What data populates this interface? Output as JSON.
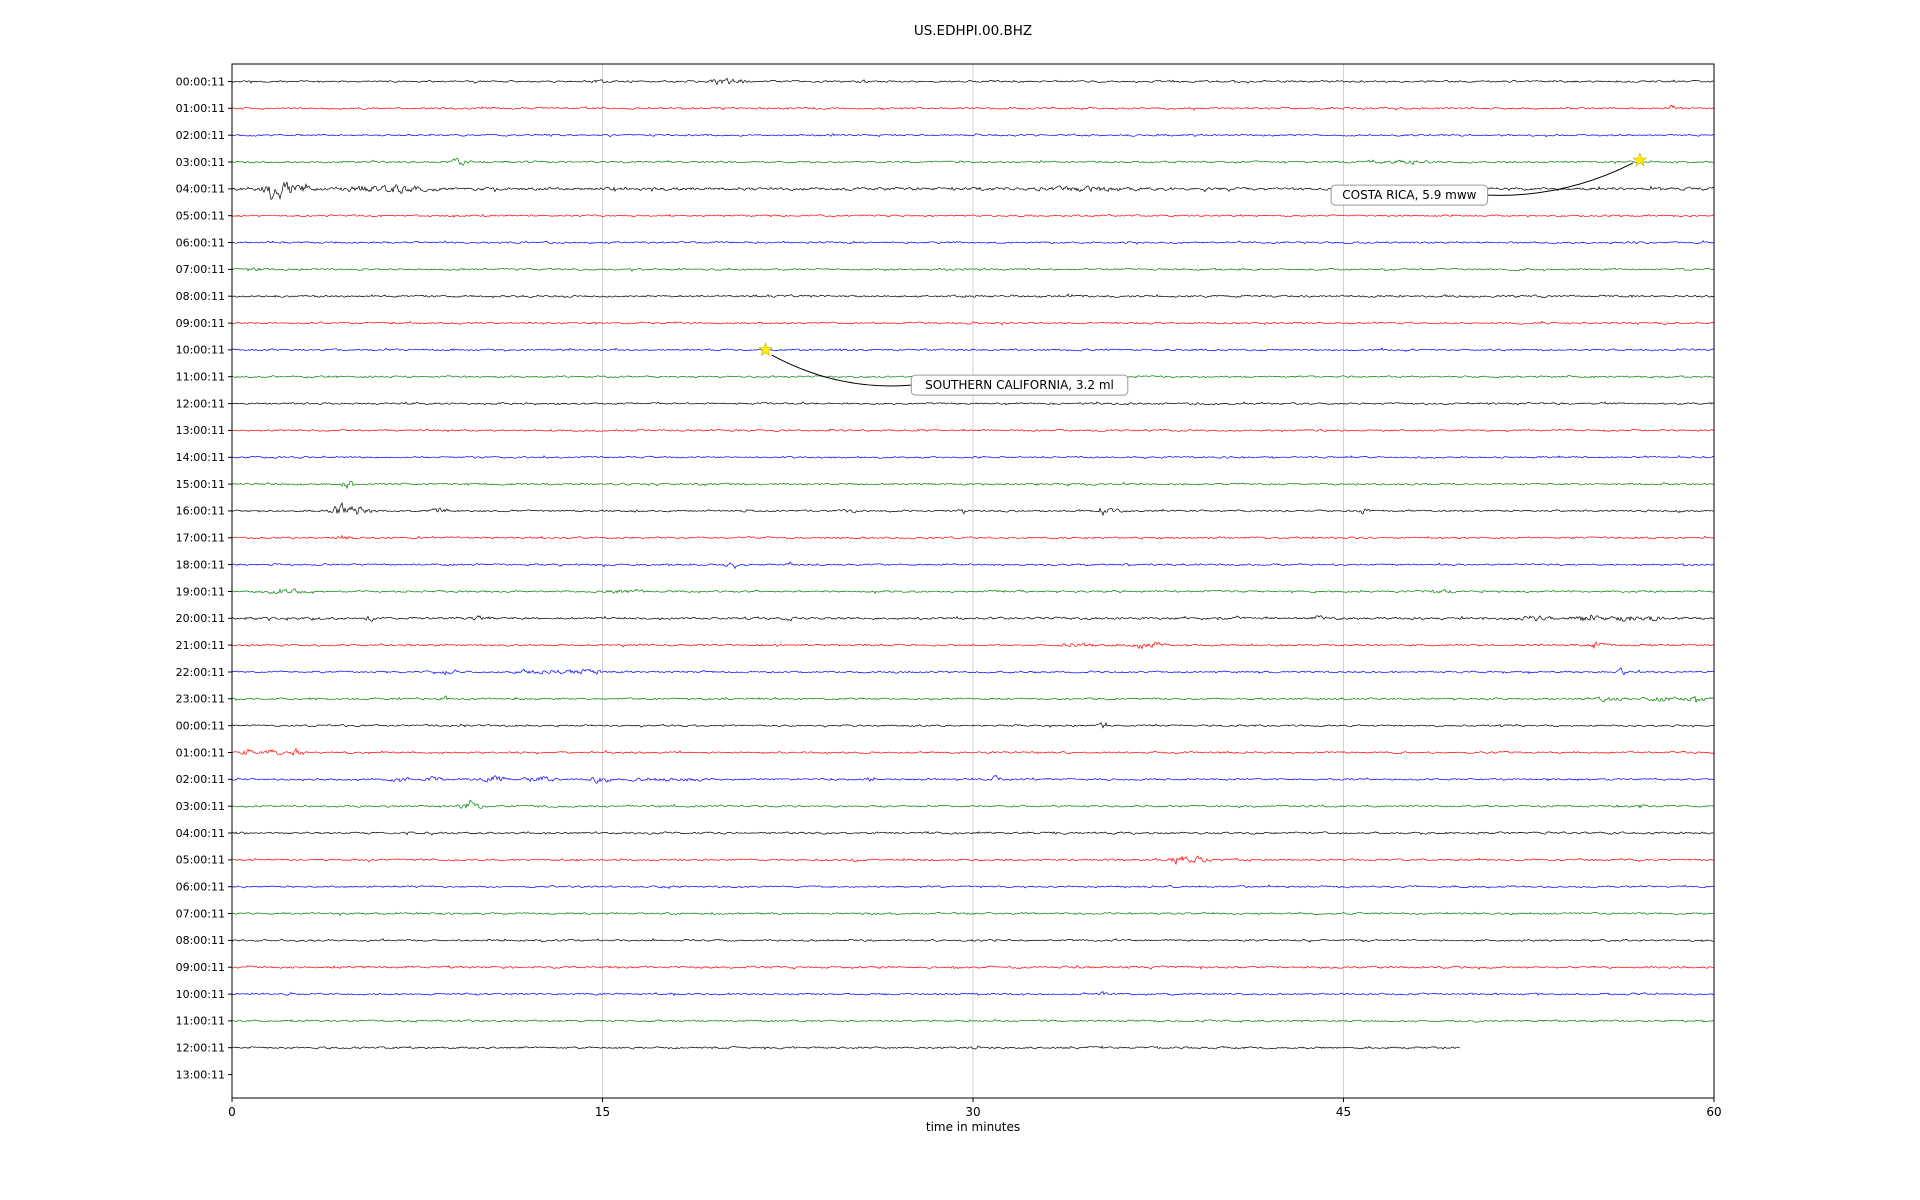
{
  "title": "US.EDHPI.00.BHZ",
  "chart_data": {
    "type": "line",
    "subtype": "seismogram_dayplot",
    "title": "US.EDHPI.00.BHZ",
    "xlabel": "time in minutes",
    "xlim": [
      0,
      60
    ],
    "x_ticks": [
      0,
      15,
      30,
      45,
      60
    ],
    "x_gridlines": [
      15,
      30,
      45
    ],
    "grid": "vertical-only",
    "colors": {
      "k": "#000000",
      "r": "#ff0000",
      "b": "#0000ff",
      "g": "#008000",
      "grid": "#cccccc",
      "frame": "#000000",
      "star": "#ffee00",
      "annotation_border": "#999999",
      "annotation_fill": "#ffffff"
    },
    "rows": [
      {
        "t": "00:00:11",
        "c": "k",
        "e": [
          [
            14.9,
            1.5,
            0.2
          ],
          [
            19.9,
            3,
            0.35
          ],
          [
            20.4,
            2,
            0.3
          ],
          [
            25.6,
            1,
            0.15
          ]
        ]
      },
      {
        "t": "01:00:11",
        "c": "r",
        "e": [
          [
            58.3,
            2.5,
            0.1
          ]
        ]
      },
      {
        "t": "02:00:11",
        "c": "b",
        "e": [
          [
            24.3,
            1.8,
            0.08
          ],
          [
            37.5,
            1,
            0.1
          ]
        ]
      },
      {
        "t": "03:00:11",
        "c": "g",
        "e": [
          [
            9.2,
            2.8,
            0.25
          ],
          [
            47.2,
            1.2,
            0.7
          ]
        ]
      },
      {
        "t": "04:00:11",
        "c": "k",
        "n": 1.5,
        "e": [
          [
            1.7,
            5,
            0.3
          ],
          [
            2.4,
            3.5,
            0.4
          ],
          [
            5.6,
            2,
            0.8
          ],
          [
            7,
            1.8,
            0.7
          ],
          [
            34.5,
            1.2,
            1.2
          ]
        ]
      },
      {
        "t": "05:00:11",
        "c": "r"
      },
      {
        "t": "06:00:11",
        "c": "b"
      },
      {
        "t": "07:00:11",
        "c": "g",
        "e": [
          [
            1,
            1.2,
            0.2
          ]
        ]
      },
      {
        "t": "08:00:11",
        "c": "k",
        "n": 1.15
      },
      {
        "t": "09:00:11",
        "c": "r"
      },
      {
        "t": "10:00:11",
        "c": "b"
      },
      {
        "t": "11:00:11",
        "c": "g"
      },
      {
        "t": "12:00:11",
        "c": "k"
      },
      {
        "t": "13:00:11",
        "c": "r"
      },
      {
        "t": "14:00:11",
        "c": "b"
      },
      {
        "t": "15:00:11",
        "c": "g",
        "e": [
          [
            4.7,
            5,
            0.12
          ],
          [
            12.6,
            1.5,
            0.1
          ]
        ]
      },
      {
        "t": "16:00:11",
        "c": "k",
        "e": [
          [
            4.4,
            7,
            0.25
          ],
          [
            5.1,
            4,
            0.3
          ],
          [
            8.4,
            3,
            0.2
          ],
          [
            25,
            1.5,
            0.2
          ],
          [
            29.6,
            2.5,
            0.15
          ],
          [
            35.5,
            3,
            0.25
          ],
          [
            45.8,
            2.5,
            0.15
          ]
        ]
      },
      {
        "t": "17:00:11",
        "c": "r",
        "e": [
          [
            4.5,
            3,
            0.18
          ]
        ]
      },
      {
        "t": "18:00:11",
        "c": "b",
        "e": [
          [
            20.3,
            3.5,
            0.2
          ],
          [
            22.5,
            3.5,
            0.12
          ]
        ]
      },
      {
        "t": "19:00:11",
        "c": "g",
        "e": [
          [
            2.2,
            2.2,
            0.5
          ],
          [
            16,
            1.8,
            0.5
          ],
          [
            49,
            1.5,
            0.3
          ]
        ]
      },
      {
        "t": "20:00:11",
        "c": "k",
        "n": 1.25,
        "e": [
          [
            3.4,
            2,
            0.12
          ],
          [
            5.6,
            1.8,
            0.12
          ],
          [
            10,
            1.5,
            0.15
          ],
          [
            22.6,
            2.2,
            0.12
          ],
          [
            44,
            1.3,
            0.2
          ],
          [
            52.8,
            2,
            0.4
          ],
          [
            54.8,
            2.2,
            0.4
          ],
          [
            56.4,
            2.5,
            0.35
          ],
          [
            57.5,
            2,
            0.3
          ]
        ]
      },
      {
        "t": "21:00:11",
        "c": "r",
        "e": [
          [
            34.2,
            2,
            0.4
          ],
          [
            36.9,
            3.5,
            0.25
          ],
          [
            37.5,
            2,
            0.3
          ],
          [
            55.3,
            2.2,
            0.25
          ]
        ]
      },
      {
        "t": "22:00:11",
        "c": "b",
        "e": [
          [
            8.7,
            2,
            0.25
          ],
          [
            12.4,
            1.8,
            0.7
          ],
          [
            14.2,
            2,
            0.5
          ],
          [
            56.3,
            3.5,
            0.1
          ]
        ]
      },
      {
        "t": "23:00:11",
        "c": "g",
        "e": [
          [
            8.6,
            3,
            0.12
          ],
          [
            55.7,
            1.8,
            0.4
          ],
          [
            57.9,
            2.2,
            0.4
          ],
          [
            59.3,
            2.4,
            0.3
          ]
        ]
      },
      {
        "t": "00:00:11",
        "c": "k",
        "e": [
          [
            35.3,
            3.5,
            0.1
          ]
        ]
      },
      {
        "t": "01:00:11",
        "c": "r",
        "e": [
          [
            0.6,
            3,
            0.15
          ],
          [
            1.6,
            2.5,
            0.3
          ],
          [
            2.7,
            3.5,
            0.2
          ]
        ]
      },
      {
        "t": "02:00:11",
        "c": "b",
        "e": [
          [
            6.8,
            2.2,
            0.3
          ],
          [
            8.1,
            1.8,
            0.4
          ],
          [
            10.6,
            2.5,
            0.4
          ],
          [
            12.5,
            2.5,
            0.4
          ],
          [
            14.9,
            3,
            0.3
          ],
          [
            16.9,
            2.2,
            0.4
          ],
          [
            18.6,
            1.6,
            0.3
          ],
          [
            25.9,
            2,
            0.12
          ],
          [
            30.9,
            3.2,
            0.1
          ]
        ]
      },
      {
        "t": "03:00:11",
        "c": "g",
        "e": [
          [
            9.6,
            4.5,
            0.3
          ],
          [
            57,
            2,
            0.1
          ]
        ]
      },
      {
        "t": "04:00:11",
        "c": "k",
        "n": 1.15
      },
      {
        "t": "05:00:11",
        "c": "r",
        "e": [
          [
            25.2,
            2,
            0.12
          ],
          [
            38.4,
            5,
            0.3
          ],
          [
            39.2,
            2.5,
            0.25
          ]
        ]
      },
      {
        "t": "06:00:11",
        "c": "b"
      },
      {
        "t": "07:00:11",
        "c": "g"
      },
      {
        "t": "08:00:11",
        "c": "k"
      },
      {
        "t": "09:00:11",
        "c": "r",
        "n": 1.15
      },
      {
        "t": "10:00:11",
        "c": "b",
        "e": [
          [
            35.3,
            1.5,
            0.1
          ]
        ]
      },
      {
        "t": "11:00:11",
        "c": "g",
        "e": [
          [
            2.5,
            1.5,
            0.12
          ]
        ]
      },
      {
        "t": "12:00:11",
        "c": "k",
        "n": 1.1,
        "xend": 49.7
      },
      {
        "t": "13:00:11",
        "c": "k",
        "trace": false
      }
    ],
    "annotations": [
      {
        "text": "COSTA RICA, 5.9 mww",
        "star": {
          "row": 2.93,
          "x": 57.0
        },
        "box": {
          "row": 3.86,
          "x": 44.5
        },
        "side": "right"
      },
      {
        "text": "SOUTHERN CALIFORNIA, 3.2 ml",
        "star": {
          "row": 10.0,
          "x": 21.6
        },
        "box": {
          "row": 10.94,
          "x": 27.5
        },
        "side": "left"
      }
    ]
  }
}
